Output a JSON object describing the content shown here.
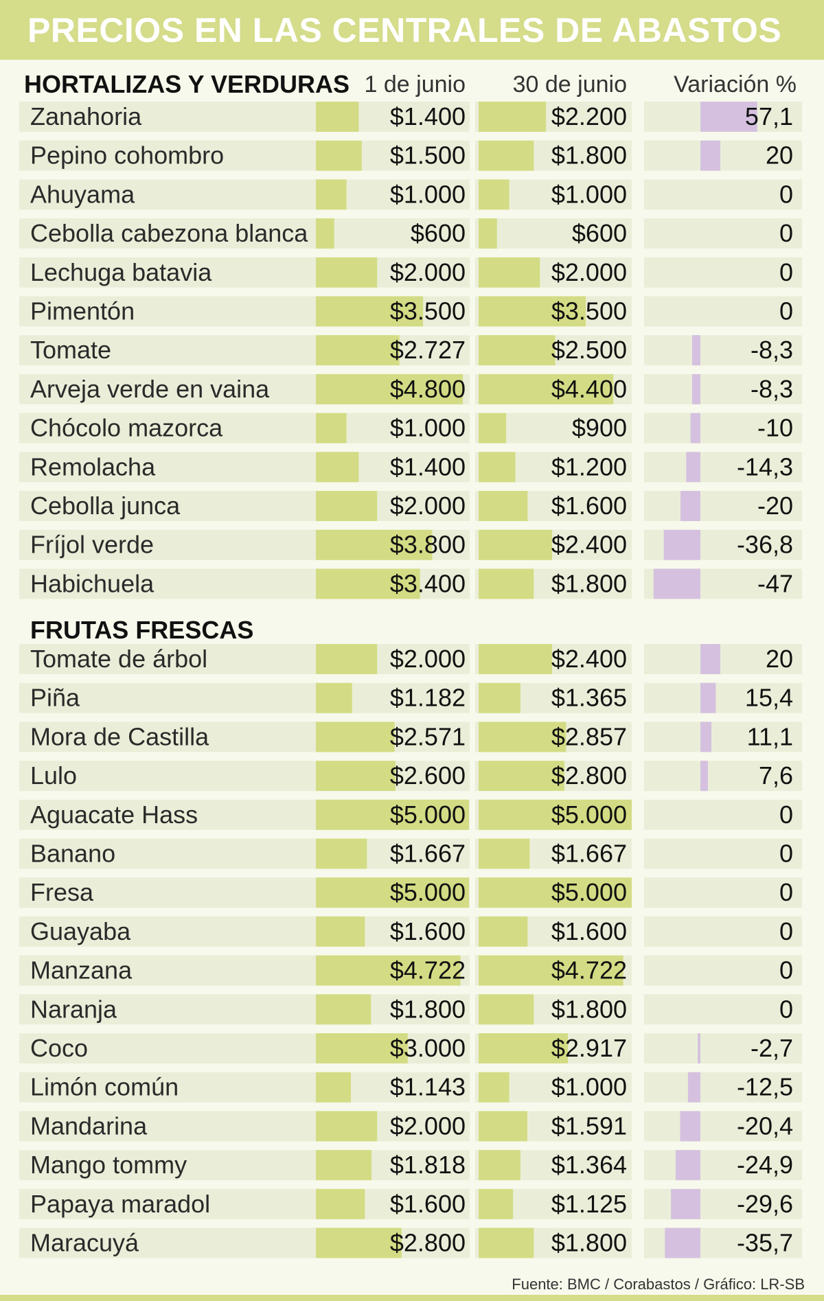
{
  "title": "PRECIOS EN LAS CENTRALES DE ABASTOS",
  "columns": [
    "1 de junio",
    "30 de junio",
    "Variación %"
  ],
  "source": "Fuente: BMC / Corabastos / Gráfico: LR-SB",
  "colors": {
    "banner": "#d5dc8a",
    "price_bar": "#d3dc84",
    "variation_bar": "#d5c1df",
    "row_bg": "#eaeed8",
    "page_bg": "#f7f9ec"
  },
  "chart_data": [
    {
      "type": "table",
      "title": "HORTALIZAS Y VERDURAS",
      "rows": [
        {
          "name": "Zanahoria",
          "p1": 1400,
          "p1_label": "$1.400",
          "p2": 2200,
          "p2_label": "$2.200",
          "var": 57.1,
          "var_label": "57,1"
        },
        {
          "name": "Pepino cohombro",
          "p1": 1500,
          "p1_label": "$1.500",
          "p2": 1800,
          "p2_label": "$1.800",
          "var": 20,
          "var_label": "20"
        },
        {
          "name": "Ahuyama",
          "p1": 1000,
          "p1_label": "$1.000",
          "p2": 1000,
          "p2_label": "$1.000",
          "var": 0,
          "var_label": "0"
        },
        {
          "name": "Cebolla cabezona blanca",
          "p1": 600,
          "p1_label": "$600",
          "p2": 600,
          "p2_label": "$600",
          "var": 0,
          "var_label": "0"
        },
        {
          "name": "Lechuga batavia",
          "p1": 2000,
          "p1_label": "$2.000",
          "p2": 2000,
          "p2_label": "$2.000",
          "var": 0,
          "var_label": "0"
        },
        {
          "name": "Pimentón",
          "p1": 3500,
          "p1_label": "$3.500",
          "p2": 3500,
          "p2_label": "$3.500",
          "var": 0,
          "var_label": "0"
        },
        {
          "name": "Tomate",
          "p1": 2727,
          "p1_label": "$2.727",
          "p2": 2500,
          "p2_label": "$2.500",
          "var": -8.3,
          "var_label": "-8,3"
        },
        {
          "name": "Arveja verde en vaina",
          "p1": 4800,
          "p1_label": "$4.800",
          "p2": 4400,
          "p2_label": "$4.400",
          "var": -8.3,
          "var_label": "-8,3"
        },
        {
          "name": "Chócolo mazorca",
          "p1": 1000,
          "p1_label": "$1.000",
          "p2": 900,
          "p2_label": "$900",
          "var": -10,
          "var_label": "-10"
        },
        {
          "name": "Remolacha",
          "p1": 1400,
          "p1_label": "$1.400",
          "p2": 1200,
          "p2_label": "$1.200",
          "var": -14.3,
          "var_label": "-14,3"
        },
        {
          "name": "Cebolla junca",
          "p1": 2000,
          "p1_label": "$2.000",
          "p2": 1600,
          "p2_label": "$1.600",
          "var": -20,
          "var_label": "-20"
        },
        {
          "name": "Fríjol verde",
          "p1": 3800,
          "p1_label": "$3.800",
          "p2": 2400,
          "p2_label": "$2.400",
          "var": -36.8,
          "var_label": "-36,8"
        },
        {
          "name": "Habichuela",
          "p1": 3400,
          "p1_label": "$3.400",
          "p2": 1800,
          "p2_label": "$1.800",
          "var": -47,
          "var_label": "-47"
        }
      ]
    },
    {
      "type": "table",
      "title": "FRUTAS FRESCAS",
      "rows": [
        {
          "name": "Tomate de árbol",
          "p1": 2000,
          "p1_label": "$2.000",
          "p2": 2400,
          "p2_label": "$2.400",
          "var": 20,
          "var_label": "20"
        },
        {
          "name": "Piña",
          "p1": 1182,
          "p1_label": "$1.182",
          "p2": 1365,
          "p2_label": "$1.365",
          "var": 15.4,
          "var_label": "15,4"
        },
        {
          "name": "Mora de Castilla",
          "p1": 2571,
          "p1_label": "$2.571",
          "p2": 2857,
          "p2_label": "$2.857",
          "var": 11.1,
          "var_label": "11,1"
        },
        {
          "name": "Lulo",
          "p1": 2600,
          "p1_label": "$2.600",
          "p2": 2800,
          "p2_label": "$2.800",
          "var": 7.6,
          "var_label": "7,6"
        },
        {
          "name": "Aguacate Hass",
          "p1": 5000,
          "p1_label": "$5.000",
          "p2": 5000,
          "p2_label": "$5.000",
          "var": 0,
          "var_label": "0"
        },
        {
          "name": "Banano",
          "p1": 1667,
          "p1_label": "$1.667",
          "p2": 1667,
          "p2_label": "$1.667",
          "var": 0,
          "var_label": "0"
        },
        {
          "name": "Fresa",
          "p1": 5000,
          "p1_label": "$5.000",
          "p2": 5000,
          "p2_label": "$5.000",
          "var": 0,
          "var_label": "0"
        },
        {
          "name": "Guayaba",
          "p1": 1600,
          "p1_label": "$1.600",
          "p2": 1600,
          "p2_label": "$1.600",
          "var": 0,
          "var_label": "0"
        },
        {
          "name": "Manzana",
          "p1": 4722,
          "p1_label": "$4.722",
          "p2": 4722,
          "p2_label": "$4.722",
          "var": 0,
          "var_label": "0"
        },
        {
          "name": "Naranja",
          "p1": 1800,
          "p1_label": "$1.800",
          "p2": 1800,
          "p2_label": "$1.800",
          "var": 0,
          "var_label": "0"
        },
        {
          "name": "Coco",
          "p1": 3000,
          "p1_label": "$3.000",
          "p2": 2917,
          "p2_label": "$2.917",
          "var": -2.7,
          "var_label": "-2,7"
        },
        {
          "name": "Limón común",
          "p1": 1143,
          "p1_label": "$1.143",
          "p2": 1000,
          "p2_label": "$1.000",
          "var": -12.5,
          "var_label": "-12,5"
        },
        {
          "name": "Mandarina",
          "p1": 2000,
          "p1_label": "$2.000",
          "p2": 1591,
          "p2_label": "$1.591",
          "var": -20.4,
          "var_label": "-20,4"
        },
        {
          "name": "Mango tommy",
          "p1": 1818,
          "p1_label": "$1.818",
          "p2": 1364,
          "p2_label": "$1.364",
          "var": -24.9,
          "var_label": "-24,9"
        },
        {
          "name": "Papaya maradol",
          "p1": 1600,
          "p1_label": "$1.600",
          "p2": 1125,
          "p2_label": "$1.125",
          "var": -29.6,
          "var_label": "-29,6"
        },
        {
          "name": "Maracuyá",
          "p1": 2800,
          "p1_label": "$2.800",
          "p2": 1800,
          "p2_label": "$1.800",
          "var": -35.7,
          "var_label": "-35,7"
        }
      ]
    }
  ]
}
